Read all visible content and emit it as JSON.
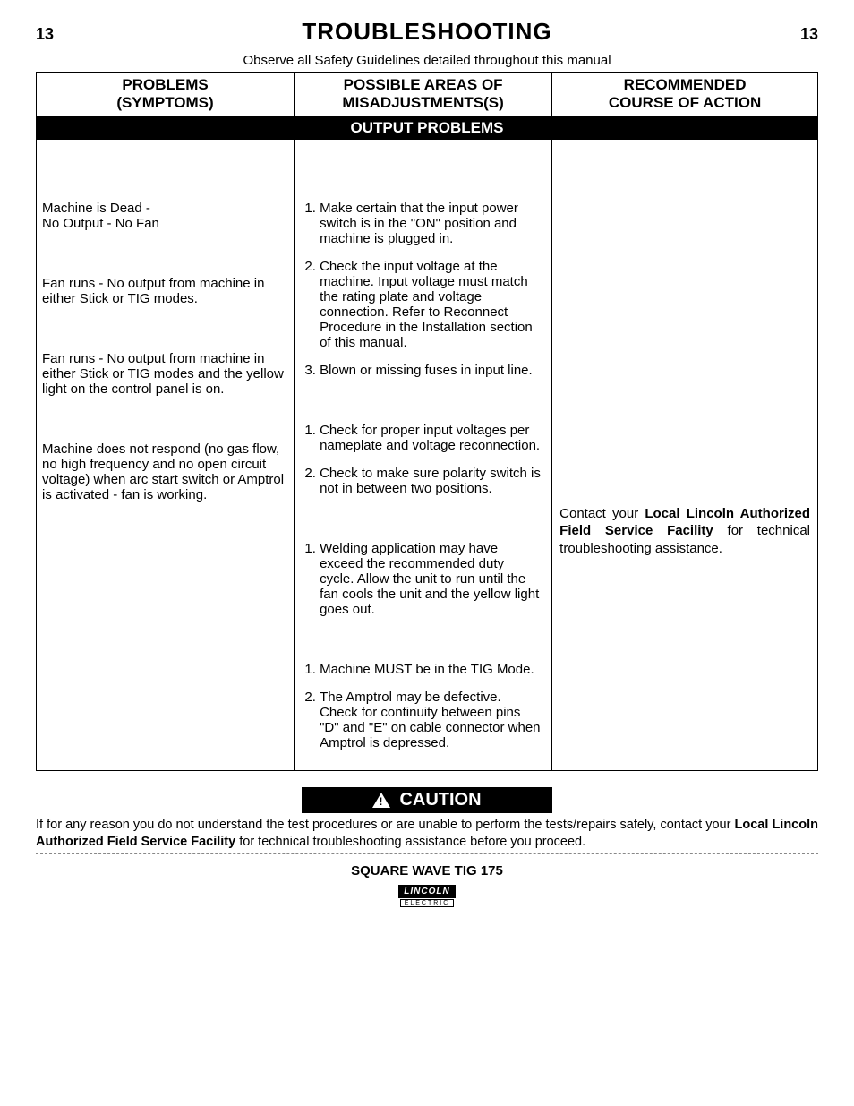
{
  "page": {
    "number_left": "13",
    "number_right": "13",
    "title": "TROUBLESHOOTING",
    "safety_note": "Observe all Safety Guidelines detailed throughout this manual"
  },
  "table": {
    "headers": {
      "col1_line1": "PROBLEMS",
      "col1_line2": "(SYMPTOMS)",
      "col2_line1": "POSSIBLE AREAS OF",
      "col2_line2": "MISADJUSTMENTS(S)",
      "col3_line1": "RECOMMENDED",
      "col3_line2": "COURSE OF ACTION"
    },
    "section_label": "OUTPUT PROBLEMS",
    "rows": [
      {
        "symptom": "Machine is Dead -\nNo Output - No Fan",
        "misadjustments": [
          "Make certain that the input power switch is in the \"ON\" position and machine is plugged in.",
          "Check the input voltage at the machine.  Input voltage must match the rating plate and voltage connection. Refer to Reconnect Procedure in the Installation section of this  manual.",
          "Blown or missing fuses in input line."
        ]
      },
      {
        "symptom": "Fan runs - No output from machine in either Stick or TIG modes.",
        "misadjustments": [
          "Check for proper input voltages per nameplate and voltage reconnection.",
          "Check to make sure polarity switch is not in between two positions."
        ]
      },
      {
        "symptom": "Fan runs - No output from machine in either Stick or TIG modes and the yellow light on the control panel is on.",
        "misadjustments": [
          "Welding application may have exceed the recommended duty cycle.  Allow the unit to run until the fan cools the unit and the yellow light goes out."
        ]
      },
      {
        "symptom": "Machine does not respond (no gas flow, no high frequency and no open circuit voltage) when arc start switch or Amptrol is activated -  fan is working.",
        "misadjustments": [
          "Machine MUST be in the TIG Mode.",
          "The Amptrol may be defective. Check for continuity between pins \"D\" and \"E\" on cable connector when Amptrol is depressed."
        ]
      }
    ],
    "recommended": {
      "prefix": "Contact your ",
      "bold": "Local  Lincoln Authorized Field Service Facility",
      "suffix": " for technical troubleshooting assistance."
    }
  },
  "caution": {
    "label": "CAUTION",
    "text_prefix": "If for any reason you do not understand the test procedures or are unable to perform the tests/repairs safely, contact your ",
    "text_bold": "Local Lincoln Authorized Field Service Facility",
    "text_suffix": " for technical troubleshooting assistance before you proceed."
  },
  "footer": {
    "product": "SQUARE WAVE TIG 175",
    "logo_text": "LINCOLN",
    "logo_sub": "ELECTRIC"
  }
}
